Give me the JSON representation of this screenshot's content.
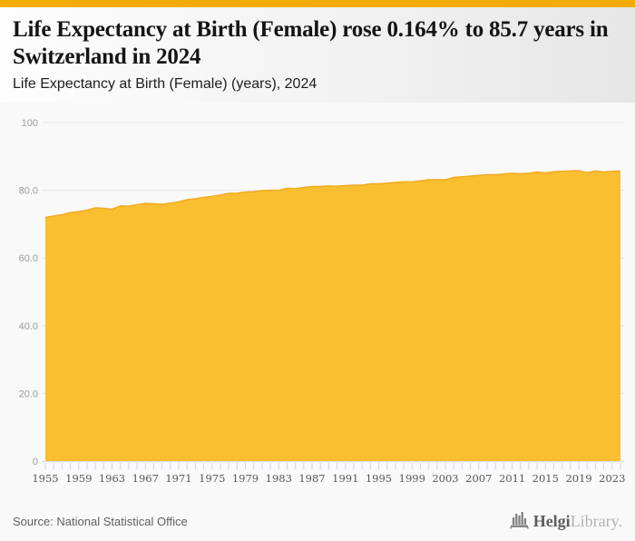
{
  "accent": {
    "color": "#F5AB00"
  },
  "header": {
    "title": "Life Expectancy at Birth (Female) rose 0.164% to 85.7 years in Switzerland in 2024",
    "subtitle": "Life Expectancy at Birth (Female) (years), 2024"
  },
  "chart_data": {
    "type": "area",
    "title": "Life Expectancy at Birth (Female) (years), 2024",
    "x": [
      1955,
      1956,
      1957,
      1958,
      1959,
      1960,
      1961,
      1962,
      1963,
      1964,
      1965,
      1966,
      1967,
      1968,
      1969,
      1970,
      1971,
      1972,
      1973,
      1974,
      1975,
      1976,
      1977,
      1978,
      1979,
      1980,
      1981,
      1982,
      1983,
      1984,
      1985,
      1986,
      1987,
      1988,
      1989,
      1990,
      1991,
      1992,
      1993,
      1994,
      1995,
      1996,
      1997,
      1998,
      1999,
      2000,
      2001,
      2002,
      2003,
      2004,
      2005,
      2006,
      2007,
      2008,
      2009,
      2010,
      2011,
      2012,
      2013,
      2014,
      2015,
      2016,
      2017,
      2018,
      2019,
      2020,
      2021,
      2022,
      2023,
      2024
    ],
    "series": [
      {
        "name": "Life Expectancy at Birth (Female) (years)",
        "values": [
          72.0,
          72.4,
          72.8,
          73.4,
          73.7,
          74.1,
          74.8,
          74.7,
          74.4,
          75.4,
          75.3,
          75.7,
          76.1,
          76.0,
          75.9,
          76.2,
          76.6,
          77.2,
          77.5,
          77.9,
          78.2,
          78.6,
          79.1,
          79.1,
          79.5,
          79.6,
          79.9,
          80.0,
          80.0,
          80.6,
          80.5,
          80.8,
          81.1,
          81.1,
          81.3,
          81.2,
          81.4,
          81.5,
          81.5,
          81.9,
          81.9,
          82.1,
          82.3,
          82.5,
          82.5,
          82.8,
          83.1,
          83.1,
          83.1,
          83.8,
          84.0,
          84.2,
          84.4,
          84.6,
          84.6,
          84.8,
          85.0,
          84.9,
          85.0,
          85.4,
          85.1,
          85.5,
          85.6,
          85.7,
          85.8,
          85.2,
          85.7,
          85.4,
          85.6,
          85.7
        ]
      }
    ],
    "ylim": [
      0,
      100
    ],
    "yticks": [
      {
        "value": 0,
        "label": "0"
      },
      {
        "value": 20,
        "label": "20.0"
      },
      {
        "value": 40,
        "label": "40.0"
      },
      {
        "value": 60,
        "label": "60.0"
      },
      {
        "value": 80,
        "label": "80.0"
      },
      {
        "value": 100,
        "label": "100"
      }
    ],
    "xticks": [
      1955,
      1959,
      1963,
      1967,
      1971,
      1975,
      1979,
      1983,
      1987,
      1991,
      1995,
      1999,
      2003,
      2007,
      2011,
      2015,
      2019,
      2023
    ],
    "grid": true,
    "legend": false,
    "area_color": "#F9BF31",
    "line_color": "#F1A81F"
  },
  "footer": {
    "source": "Source: National Statistical Office",
    "logo": {
      "brand_bold": "Helgi",
      "brand_light": "Library."
    }
  }
}
